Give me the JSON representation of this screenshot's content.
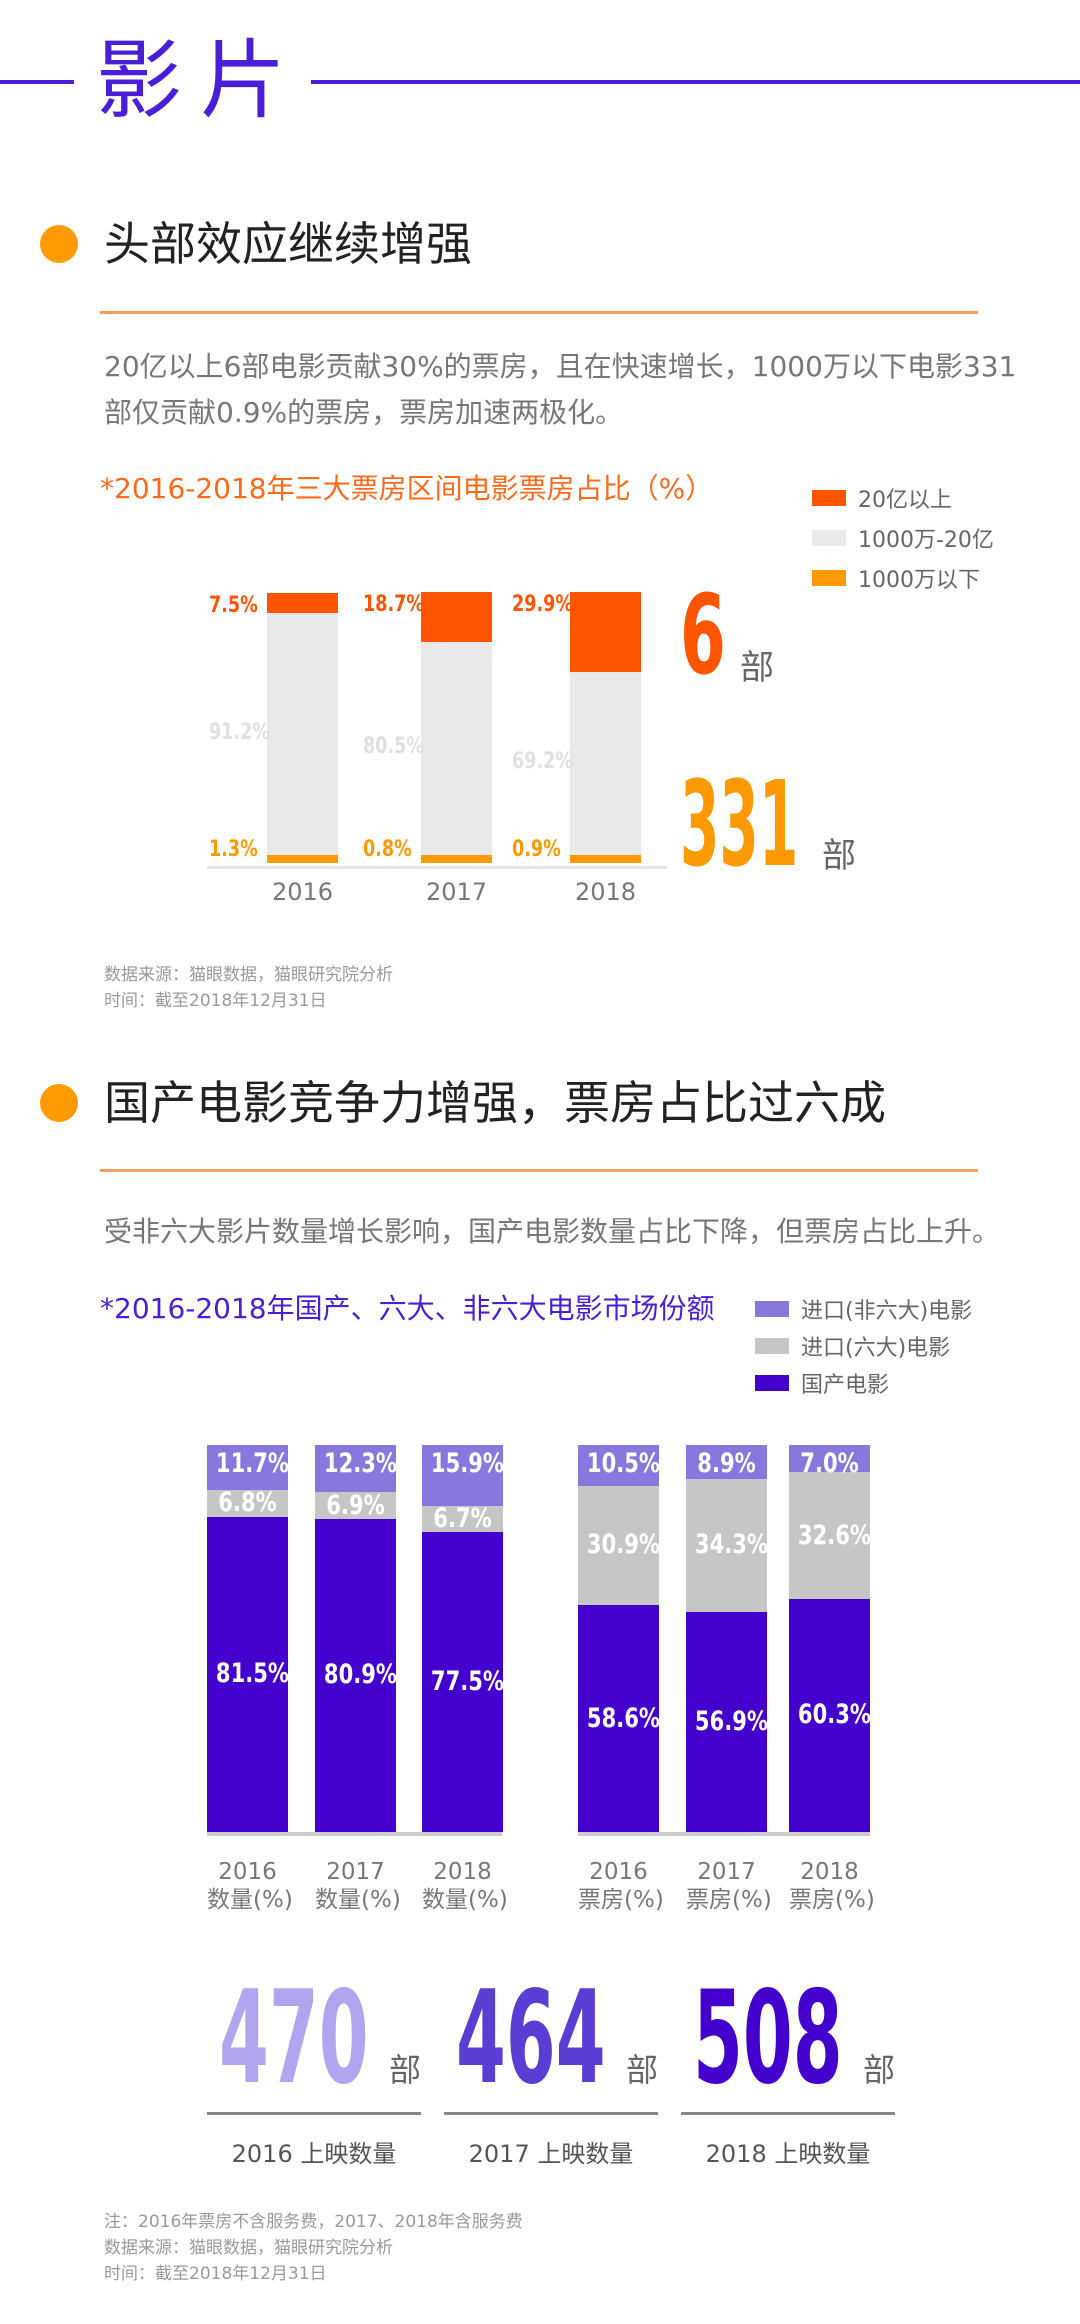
{
  "page_title": "影片",
  "section1": {
    "heading": "头部效应继续增强",
    "paragraph": [
      "20亿以上6部电影贡献30%的票房，且在快速增长，1000万以下电影331",
      "部仅贡献0.9%的票房，票房加速两极化。"
    ],
    "big_top": {
      "number": "6",
      "unit": "部"
    },
    "big_bottom": {
      "number": "331",
      "unit": "部"
    },
    "source": [
      "数据来源：猫眼数据，猫眼研究院分析",
      "时间：截至2018年12月31日"
    ]
  },
  "section2": {
    "heading": "国产电影竞争力增强，票房占比过六成",
    "paragraph": "受非六大影片数量增长影响，国产电影数量占比下降，但票房占比上升。",
    "counts": [
      {
        "number": "470",
        "unit": "部",
        "label": "2016 上映数量",
        "color": "#b2a5f0"
      },
      {
        "number": "464",
        "unit": "部",
        "label": "2017 上映数量",
        "color": "#5a3dd2"
      },
      {
        "number": "508",
        "unit": "部",
        "label": "2018 上映数量",
        "color": "#4400cc"
      }
    ],
    "notes": [
      "注：2016年票房不含服务费，2017、2018年含服务费",
      "数据来源：猫眼数据，猫眼研究院分析",
      "时间：截至2018年12月31日"
    ]
  },
  "chart_data": [
    {
      "type": "bar",
      "stacked": true,
      "title": "*2016-2018年三大票房区间电影票房占比（%）",
      "categories": [
        "2016",
        "2017",
        "2018"
      ],
      "series": [
        {
          "name": "1000万以下",
          "color": "#ff9900",
          "values": [
            1.3,
            0.8,
            0.9
          ],
          "labels": [
            "1.3%",
            "0.8%",
            "0.9%"
          ]
        },
        {
          "name": "1000万-20亿",
          "color": "#e9e9e9",
          "values": [
            91.2,
            80.5,
            69.2
          ],
          "labels": [
            "91.2%",
            "80.5%",
            "69.2%"
          ]
        },
        {
          "name": "20亿以上",
          "color": "#ff5500",
          "values": [
            7.5,
            18.7,
            29.9
          ],
          "labels": [
            "7.5%",
            "18.7%",
            "29.9%"
          ]
        }
      ],
      "legend": [
        "20亿以上",
        "1000万-20亿",
        "1000万以下"
      ],
      "legend_position": "top-right",
      "ylim": [
        0,
        100
      ]
    },
    {
      "type": "bar",
      "stacked": true,
      "title": "*2016-2018年国产、六大、非六大电影市场份额",
      "categories": [
        [
          "2016",
          "数量(%)"
        ],
        [
          "2017",
          "数量(%)"
        ],
        [
          "2018",
          "数量(%)"
        ],
        [
          "2016",
          "票房(%)"
        ],
        [
          "2017",
          "票房(%)"
        ],
        [
          "2018",
          "票房(%)"
        ]
      ],
      "series": [
        {
          "name": "国产电影",
          "color": "#4400cc",
          "values": [
            81.5,
            80.9,
            77.5,
            58.6,
            56.9,
            60.3
          ],
          "labels": [
            "81.5%",
            "80.9%",
            "77.5%",
            "58.6%",
            "56.9%",
            "60.3%"
          ]
        },
        {
          "name": "进口(六大)电影",
          "color": "#c6c6c6",
          "values": [
            6.8,
            6.9,
            6.7,
            30.9,
            34.3,
            32.6
          ],
          "labels": [
            "6.8%",
            "6.9%",
            "6.7%",
            "30.9%",
            "34.3%",
            "32.6%"
          ]
        },
        {
          "name": "进口(非六大)电影",
          "color": "#8877dd",
          "values": [
            11.7,
            12.3,
            15.9,
            10.5,
            8.9,
            7.0
          ],
          "labels": [
            "11.7%",
            "12.3%",
            "15.9%",
            "10.5%",
            "8.9%",
            "7.0%"
          ]
        }
      ],
      "legend": [
        "进口(非六大)电影",
        "进口(六大)电影",
        "国产电影"
      ],
      "legend_position": "top-right",
      "ylim": [
        0,
        100
      ]
    }
  ]
}
